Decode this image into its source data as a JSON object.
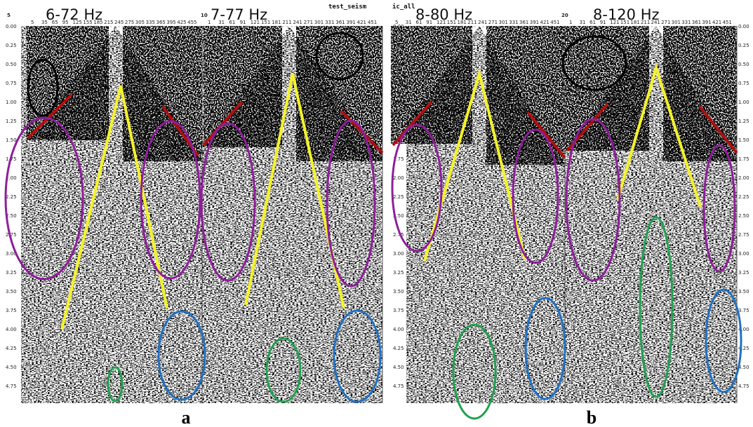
{
  "panels": [
    {
      "label": "a",
      "tag": "test_seism",
      "time_labels": [
        "0.00",
        "0.25",
        "0.50",
        "0.75",
        "1.00",
        "1.25",
        "1.50",
        "1.75",
        "2.00",
        "2.25",
        "2.50",
        "2.75",
        "3.00",
        "3.25",
        "3.50",
        "3.75",
        "4.00",
        "4.25",
        "4.50",
        "4.75"
      ],
      "gathers": [
        {
          "header": "5",
          "freq": "6-72 Hz",
          "traces": [
            "5",
            "35",
            "65",
            "95",
            "125",
            "155",
            "185",
            "215",
            "245",
            "275",
            "305",
            "335",
            "365",
            "395",
            "425",
            "455"
          ]
        },
        {
          "header": "10",
          "freq": "7-77 Hz",
          "traces": [
            "1",
            "31",
            "61",
            "91",
            "121",
            "151",
            "181",
            "211",
            "241",
            "271",
            "301",
            "331",
            "361",
            "391",
            "421",
            "451"
          ]
        }
      ]
    },
    {
      "label": "b",
      "tag": "ic_all",
      "time_labels": [
        "0.00",
        "0.25",
        "0.50",
        "0.75",
        "1.00",
        "1.25",
        "1.50",
        "1.75",
        "2.00",
        "2.25",
        "2.50",
        "2.75",
        "3.00",
        "3.25",
        "3.50",
        "3.75",
        "4.00",
        "4.25",
        "4.50",
        "4.75"
      ],
      "gathers": [
        {
          "freq": "8-80 Hz",
          "traces": [
            "5",
            "31",
            "61",
            "91",
            "121",
            "151",
            "181",
            "211",
            "241",
            "271",
            "301",
            "331",
            "361",
            "391",
            "421",
            "451"
          ]
        },
        {
          "header": "20",
          "freq": "8-120 Hz",
          "traces": [
            "1",
            "31",
            "61",
            "91",
            "121",
            "151",
            "181",
            "211",
            "241",
            "271",
            "301",
            "331",
            "361",
            "391",
            "421",
            "451"
          ]
        }
      ]
    }
  ]
}
